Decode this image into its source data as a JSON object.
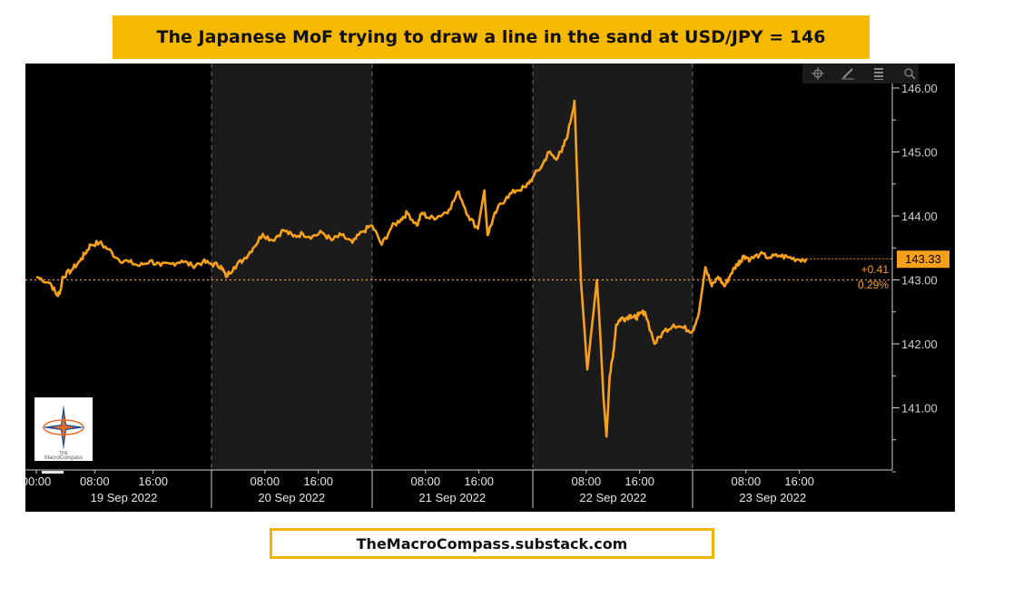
{
  "title": "The Japanese MoF trying to draw a line in the sand at USD/JPY = 146",
  "footer": "TheMacroCompass.substack.com",
  "toolbar": {
    "icons": [
      "crosshair-icon",
      "pencil-icon",
      "list-icon",
      "search-icon"
    ]
  },
  "logo": {
    "text_top": "THE",
    "text_bottom": "MacroCompass"
  },
  "colors": {
    "line": "#f7a01c",
    "shade": "#1b1b1b",
    "background": "#000000",
    "axis": "#cfcfcf",
    "price_badge": "#f7a01c"
  },
  "chart_data": {
    "type": "line",
    "title": "",
    "xlabel": "",
    "ylabel": "",
    "ylim": [
      140,
      146.2
    ],
    "y_ticks": [
      "146.00",
      "145.00",
      "144.00",
      "143.00",
      "142.00",
      "141.00"
    ],
    "y_tick_values": [
      146,
      145,
      144,
      143,
      142,
      141
    ],
    "day_labels": [
      "19 Sep 2022",
      "20 Sep 2022",
      "21 Sep 2022",
      "22 Sep 2022",
      "23 Sep 2022"
    ],
    "hour_ticks": [
      {
        "day": 0,
        "hour": 0,
        "label": "00:00"
      },
      {
        "day": 0,
        "hour": 8,
        "label": "08:00"
      },
      {
        "day": 0,
        "hour": 16,
        "label": "16:00"
      },
      {
        "day": 1,
        "hour": 8,
        "label": "08:00"
      },
      {
        "day": 1,
        "hour": 16,
        "label": "16:00"
      },
      {
        "day": 2,
        "hour": 8,
        "label": "08:00"
      },
      {
        "day": 2,
        "hour": 16,
        "label": "16:00"
      },
      {
        "day": 3,
        "hour": 8,
        "label": "08:00"
      },
      {
        "day": 3,
        "hour": 16,
        "label": "16:00"
      },
      {
        "day": 4,
        "hour": 8,
        "label": "08:00"
      },
      {
        "day": 4,
        "hour": 16,
        "label": "16:00"
      }
    ],
    "shaded_days": [
      1,
      3
    ],
    "reference_line": 143.0,
    "last_price": "143.33",
    "change_abs": "+0.41",
    "change_pct": "0.29%",
    "series": [
      {
        "x_days": [
          0.0,
          0.08,
          0.12,
          0.14,
          0.15,
          0.2,
          0.25,
          0.28,
          0.31,
          0.36,
          0.41,
          0.47,
          0.53,
          0.59,
          0.65,
          0.71,
          0.77,
          0.83,
          0.89,
          0.95,
          1.0,
          1.06,
          1.09,
          1.14,
          1.2,
          1.26,
          1.32,
          1.38,
          1.45,
          1.51,
          1.57,
          1.63,
          1.69,
          1.75,
          1.81,
          1.88,
          1.94,
          2.0,
          2.06,
          2.12,
          2.18,
          2.22,
          2.28,
          2.31,
          2.36,
          2.42,
          2.48,
          2.54,
          2.6,
          2.66,
          2.7,
          2.72,
          2.74,
          2.78,
          2.84,
          2.9,
          2.96,
          3.0,
          3.06,
          3.1,
          3.14,
          3.18,
          3.22,
          3.26,
          3.3,
          3.34,
          3.4,
          3.42,
          3.44,
          3.46,
          3.48,
          3.5,
          3.52,
          3.55,
          3.58,
          3.61,
          3.64,
          3.66,
          3.7,
          3.76,
          3.82,
          3.88,
          3.94,
          4.0,
          4.04,
          4.08,
          4.12,
          4.16,
          4.2,
          4.24,
          4.28,
          4.3,
          4.32,
          4.36,
          4.42,
          4.48,
          4.54,
          4.6,
          4.66,
          4.71
        ],
        "values": [
          143.05,
          142.95,
          142.75,
          142.85,
          143.05,
          143.15,
          143.3,
          143.42,
          143.55,
          143.58,
          143.48,
          143.32,
          143.28,
          143.22,
          143.3,
          143.22,
          143.25,
          143.3,
          143.22,
          143.28,
          143.25,
          143.22,
          143.05,
          143.2,
          143.32,
          143.5,
          143.72,
          143.62,
          143.78,
          143.68,
          143.72,
          143.68,
          143.74,
          143.62,
          143.7,
          143.58,
          143.75,
          143.85,
          143.55,
          143.82,
          143.95,
          144.05,
          143.85,
          144.05,
          143.96,
          144.0,
          144.1,
          144.38,
          144.0,
          143.8,
          144.4,
          143.7,
          143.85,
          144.1,
          144.3,
          144.4,
          144.45,
          144.6,
          144.8,
          145.0,
          144.9,
          145.0,
          145.3,
          145.8,
          143.0,
          141.6,
          143.0,
          142.2,
          141.2,
          140.55,
          141.5,
          141.8,
          142.3,
          142.4,
          142.4,
          142.45,
          142.4,
          142.45,
          142.5,
          142.0,
          142.2,
          142.3,
          142.25,
          142.2,
          142.5,
          143.2,
          142.9,
          143.05,
          142.9,
          143.1,
          143.25,
          143.3,
          143.38,
          143.32,
          143.4,
          143.35,
          143.38,
          143.35,
          143.32,
          143.33
        ]
      }
    ]
  }
}
